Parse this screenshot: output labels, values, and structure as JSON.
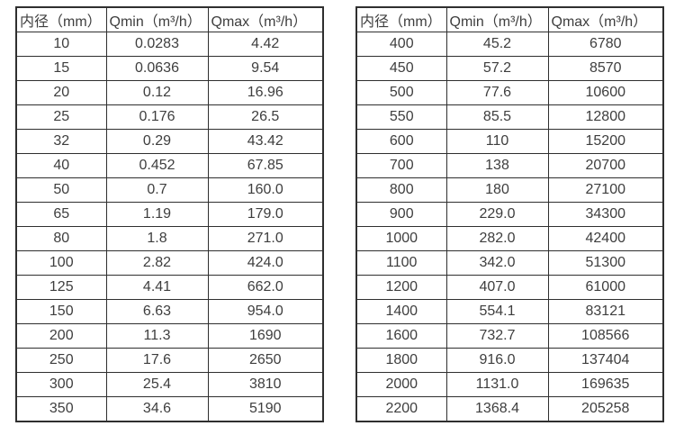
{
  "page": {
    "background": "#ffffff",
    "text_color": "#3e3e3e",
    "border_color": "#2f2f2f"
  },
  "chart_data": [
    {
      "type": "table",
      "title": "",
      "columns": [
        "内径（mm）",
        "Qmin（m³/h）",
        "Qmax（m³/h）"
      ],
      "rows": [
        [
          "10",
          "0.0283",
          "4.42"
        ],
        [
          "15",
          "0.0636",
          "9.54"
        ],
        [
          "20",
          "0.12",
          "16.96"
        ],
        [
          "25",
          "0.176",
          "26.5"
        ],
        [
          "32",
          "0.29",
          "43.42"
        ],
        [
          "40",
          "0.452",
          "67.85"
        ],
        [
          "50",
          "0.7",
          "160.0"
        ],
        [
          "65",
          "1.19",
          "179.0"
        ],
        [
          "80",
          "1.8",
          "271.0"
        ],
        [
          "100",
          "2.82",
          "424.0"
        ],
        [
          "125",
          "4.41",
          "662.0"
        ],
        [
          "150",
          "6.63",
          "954.0"
        ],
        [
          "200",
          "11.3",
          "1690"
        ],
        [
          "250",
          "17.6",
          "2650"
        ],
        [
          "300",
          "25.4",
          "3810"
        ],
        [
          "350",
          "34.6",
          "5190"
        ]
      ]
    },
    {
      "type": "table",
      "title": "",
      "columns": [
        "内径（mm）",
        "Qmin（m³/h）",
        "Qmax（m³/h）"
      ],
      "rows": [
        [
          "400",
          "45.2",
          "6780"
        ],
        [
          "450",
          "57.2",
          "8570"
        ],
        [
          "500",
          "77.6",
          "10600"
        ],
        [
          "550",
          "85.5",
          "12800"
        ],
        [
          "600",
          "110",
          "15200"
        ],
        [
          "700",
          "138",
          "20700"
        ],
        [
          "800",
          "180",
          "27100"
        ],
        [
          "900",
          "229.0",
          "34300"
        ],
        [
          "1000",
          "282.0",
          "42400"
        ],
        [
          "1100",
          "342.0",
          "51300"
        ],
        [
          "1200",
          "407.0",
          "61000"
        ],
        [
          "1400",
          "554.1",
          "83121"
        ],
        [
          "1600",
          "732.7",
          "108566"
        ],
        [
          "1800",
          "916.0",
          "137404"
        ],
        [
          "2000",
          "1131.0",
          "169635"
        ],
        [
          "2200",
          "1368.4",
          "205258"
        ]
      ]
    }
  ]
}
